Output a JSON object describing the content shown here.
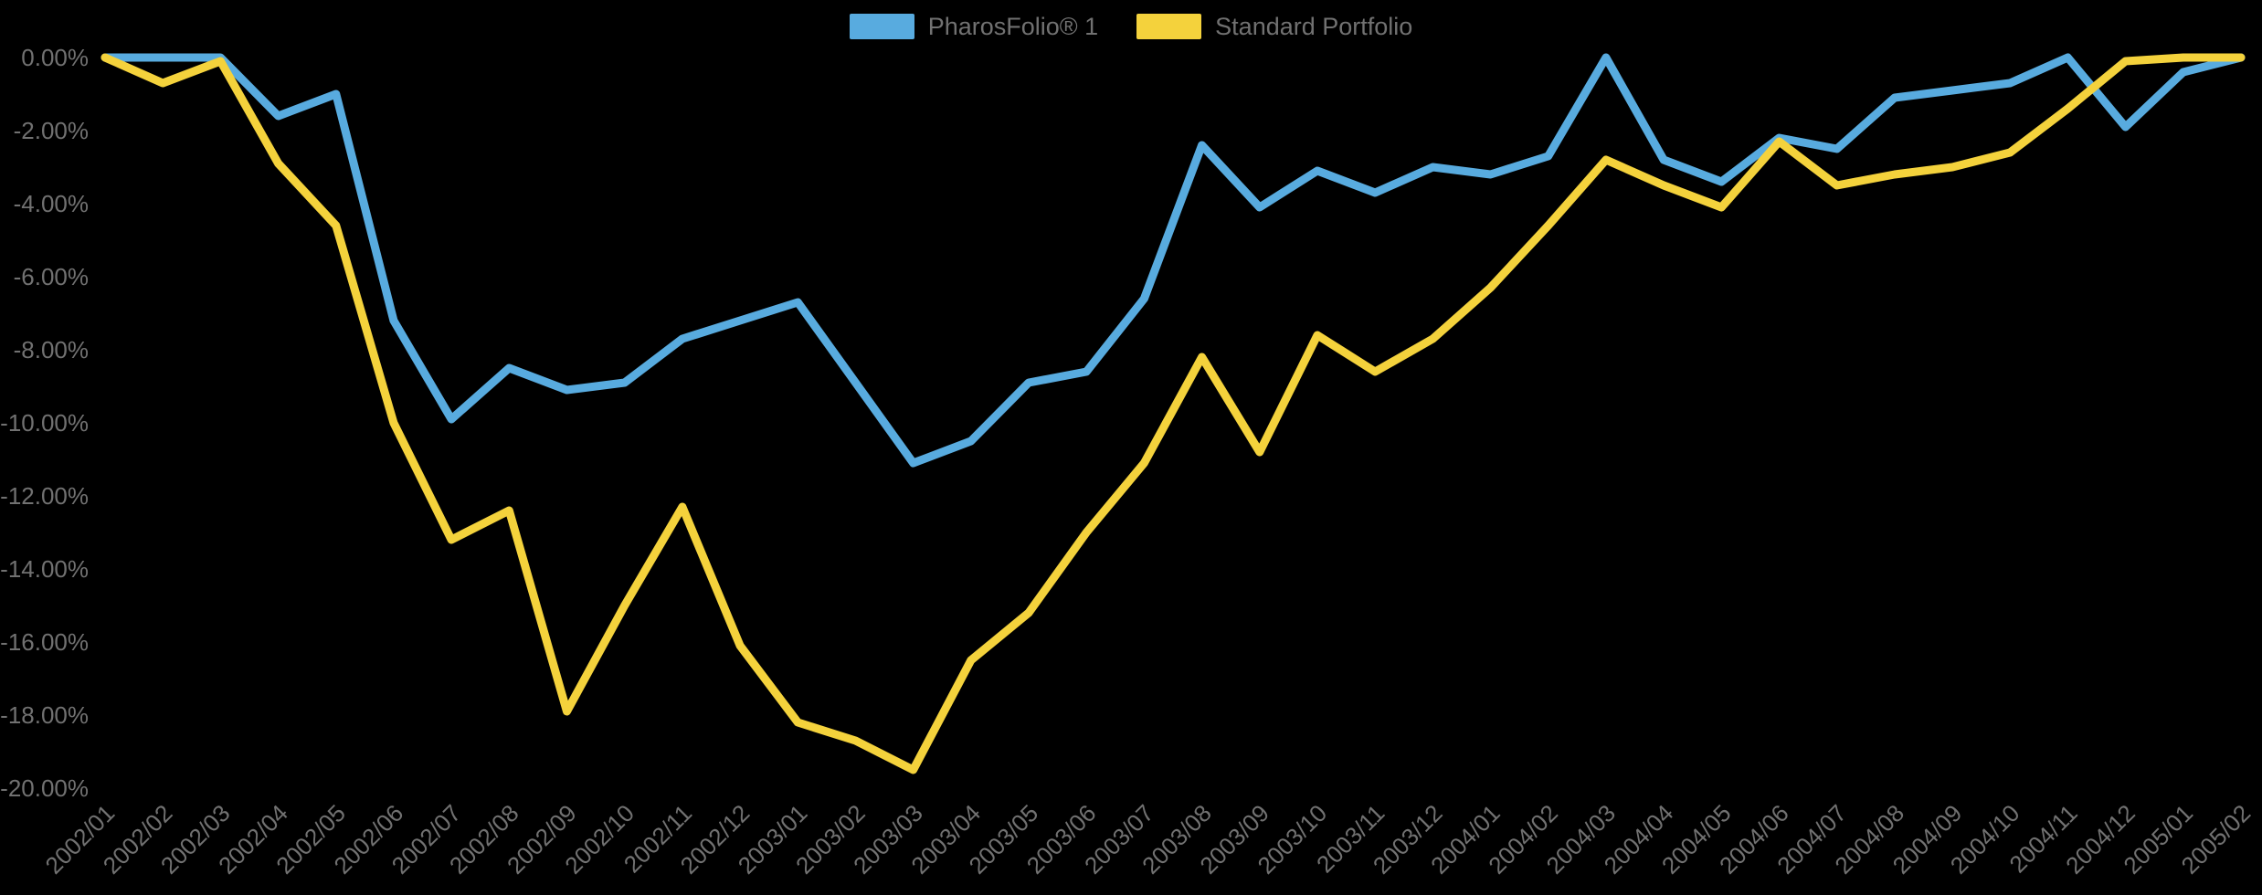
{
  "legend": {
    "items": [
      {
        "label": "PharosFolio® 1",
        "color": "#58ABDF"
      },
      {
        "label": "Standard Portfolio",
        "color": "#F4D23C"
      }
    ]
  },
  "axes": {
    "y_tick_labels": [
      "0.00%",
      "-2.00%",
      "-4.00%",
      "-6.00%",
      "-8.00%",
      "-10.00%",
      "-12.00%",
      "-14.00%",
      "-16.00%",
      "-18.00%",
      "-20.00%"
    ],
    "text_color": "#717171"
  },
  "chart_data": {
    "type": "line",
    "title": "",
    "xlabel": "",
    "ylabel": "",
    "grid": false,
    "background": "#000000",
    "legend_position": "top-center",
    "ylim": [
      -20,
      0
    ],
    "y_tick_step": 2,
    "x": [
      "2002/01",
      "2002/02",
      "2002/03",
      "2002/04",
      "2002/05",
      "2002/06",
      "2002/07",
      "2002/08",
      "2002/09",
      "2002/10",
      "2002/11",
      "2002/12",
      "2003/01",
      "2003/02",
      "2003/03",
      "2003/04",
      "2003/05",
      "2003/06",
      "2003/07",
      "2003/08",
      "2003/09",
      "2003/10",
      "2003/11",
      "2003/12",
      "2004/01",
      "2004/02",
      "2004/03",
      "2004/04",
      "2004/05",
      "2004/06",
      "2004/07",
      "2004/08",
      "2004/09",
      "2004/10",
      "2004/11",
      "2004/12",
      "2005/01",
      "2005/02"
    ],
    "series": [
      {
        "name": "PharosFolio® 1",
        "color": "#58ABDF",
        "values": [
          0.0,
          0.0,
          0.0,
          -1.6,
          -1.0,
          -7.2,
          -9.9,
          -8.5,
          -9.1,
          -8.9,
          -7.7,
          -7.2,
          -6.7,
          -8.9,
          -11.1,
          -10.5,
          -8.9,
          -8.6,
          -6.6,
          -2.4,
          -4.1,
          -3.1,
          -3.7,
          -3.0,
          -3.2,
          -2.7,
          0.0,
          -2.8,
          -3.4,
          -2.2,
          -2.5,
          -1.1,
          -0.9,
          -0.7,
          0.0,
          -1.9,
          -0.4,
          0.0
        ]
      },
      {
        "name": "Standard Portfolio",
        "color": "#F4D23C",
        "values": [
          0.0,
          -0.7,
          -0.1,
          -2.9,
          -4.6,
          -10.0,
          -13.2,
          -12.4,
          -17.9,
          -15.0,
          -12.3,
          -16.1,
          -18.2,
          -18.7,
          -19.5,
          -16.5,
          -15.2,
          -13.0,
          -11.1,
          -8.2,
          -10.8,
          -7.6,
          -8.6,
          -7.7,
          -6.3,
          -4.6,
          -2.8,
          -3.5,
          -4.1,
          -2.3,
          -3.5,
          -3.2,
          -3.0,
          -2.6,
          -1.4,
          -0.1,
          0.0,
          0.0
        ]
      }
    ]
  }
}
